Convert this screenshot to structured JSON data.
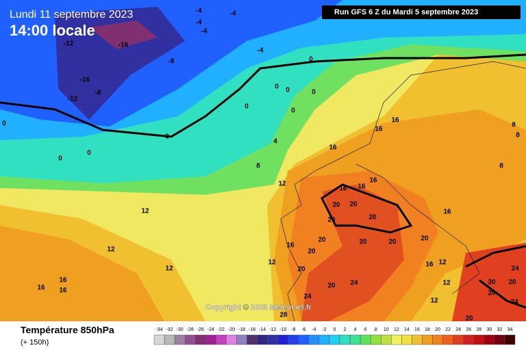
{
  "header": {
    "date": "Lundi 11 septembre 2023",
    "time": "14:00 locale",
    "run": "Run GFS 6 Z du Mardi 5 septembre 2023"
  },
  "copyright": "Copyright © 2023 Meteociel.fr",
  "footer": {
    "title": "Température 850hPa",
    "lead": "(+ 150h)"
  },
  "scale": {
    "values": [
      -34,
      -32,
      -30,
      -28,
      -26,
      -24,
      -22,
      -20,
      -18,
      -16,
      -14,
      -12,
      -10,
      -8,
      -6,
      -4,
      -2,
      0,
      2,
      4,
      6,
      8,
      10,
      12,
      14,
      16,
      18,
      20,
      22,
      24,
      26,
      28,
      30,
      32,
      34
    ],
    "colors": [
      "#d8d8d8",
      "#b8b8b8",
      "#a080a0",
      "#905090",
      "#803070",
      "#a02090",
      "#c040c0",
      "#e080e0",
      "#9080c0",
      "#503070",
      "#302880",
      "#3030a0",
      "#2020d0",
      "#2040f0",
      "#2060ff",
      "#2090ff",
      "#20b0ff",
      "#20d0f0",
      "#30e0c0",
      "#40e090",
      "#60e060",
      "#90e040",
      "#c0e040",
      "#f0f060",
      "#f0e040",
      "#f0c030",
      "#f0a020",
      "#f08020",
      "#f06020",
      "#e04020",
      "#d02020",
      "#c01010",
      "#a00010",
      "#700010",
      "#400000"
    ]
  },
  "contour_labels": [
    -4,
    -4,
    -4,
    -4,
    -4,
    -12,
    -16,
    -8,
    -16,
    -8,
    -12,
    0,
    0,
    0,
    0,
    0,
    0,
    0,
    0,
    0,
    0,
    4,
    8,
    12,
    16,
    16,
    16,
    8,
    8,
    8,
    16,
    16,
    16,
    20,
    20,
    20,
    20,
    16,
    12,
    12,
    12,
    16,
    20,
    20,
    20,
    20,
    20,
    16,
    12,
    12,
    20,
    24,
    20,
    16,
    16,
    16,
    24,
    20,
    20,
    24,
    28,
    24,
    20,
    12,
    12,
    20
  ]
}
